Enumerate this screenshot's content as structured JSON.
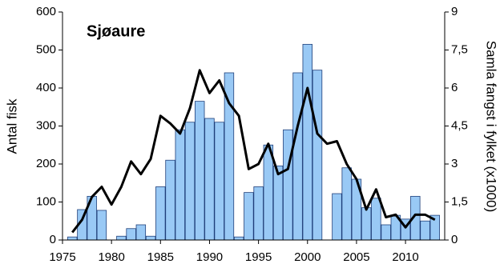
{
  "chart_data": {
    "type": "bar-line",
    "title": "Sjøaure",
    "ylabel": "Antal fisk",
    "y2label": "Samla fangst i fylket (x1000)",
    "x": [
      1976,
      1977,
      1978,
      1979,
      1980,
      1981,
      1982,
      1983,
      1984,
      1985,
      1986,
      1987,
      1988,
      1989,
      1990,
      1991,
      1992,
      1993,
      1994,
      1995,
      1996,
      1997,
      1998,
      1999,
      2000,
      2001,
      2002,
      2003,
      2004,
      2005,
      2006,
      2007,
      2008,
      2009,
      2010,
      2011,
      2012,
      2013
    ],
    "series": [
      {
        "type": "bar",
        "color": "#99c9f5",
        "values": [
          8,
          80,
          115,
          78,
          0,
          10,
          30,
          40,
          10,
          140,
          210,
          290,
          310,
          365,
          320,
          310,
          440,
          8,
          125,
          140,
          250,
          195,
          290,
          440,
          515,
          447,
          null,
          122,
          190,
          160,
          85,
          110,
          40,
          65,
          55,
          115,
          50,
          65
        ]
      },
      {
        "type": "line",
        "axis": "y2",
        "color": "#000000",
        "values": [
          0.3,
          0.8,
          1.7,
          2.1,
          1.4,
          2.1,
          3.1,
          2.6,
          3.2,
          4.9,
          4.6,
          4.2,
          5.2,
          6.7,
          5.8,
          6.3,
          5.4,
          4.9,
          2.8,
          3.0,
          3.8,
          2.6,
          2.8,
          4.5,
          6.0,
          4.2,
          3.8,
          3.9,
          3.0,
          2.4,
          1.2,
          2.0,
          0.9,
          1.0,
          0.5,
          1.0,
          1.0,
          0.8
        ]
      }
    ],
    "xlim": [
      1975,
      2014
    ],
    "xticks": [
      1975,
      1980,
      1985,
      1990,
      1995,
      2000,
      2005,
      2010
    ],
    "ylim": [
      0,
      600
    ],
    "yticks": [
      0,
      100,
      200,
      300,
      400,
      500,
      600
    ],
    "y2lim": [
      0,
      9
    ],
    "y2ticks": [
      0,
      {
        "value": 1.5,
        "label": "1,5"
      },
      3,
      {
        "value": 4.5,
        "label": "4,5"
      },
      6,
      {
        "value": 7.5,
        "label": "7,5"
      },
      9
    ]
  }
}
